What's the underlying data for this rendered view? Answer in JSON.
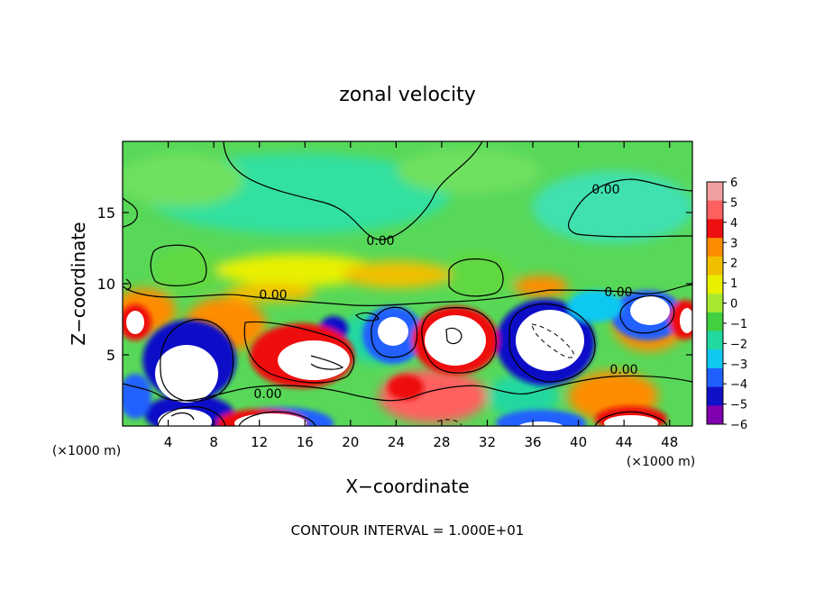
{
  "chart_data": {
    "type": "heatmap",
    "title": "zonal velocity",
    "xlabel": "X−coordinate",
    "ylabel": "Z−coordinate",
    "x_unit_left": "(×1000 m)",
    "x_unit_right": "(×1000 m)",
    "footer": "CONTOUR INTERVAL = 1.000E+01",
    "xlim": [
      0,
      50
    ],
    "ylim": [
      0,
      20
    ],
    "x_ticks": [
      4,
      8,
      12,
      16,
      20,
      24,
      28,
      32,
      36,
      40,
      44,
      48
    ],
    "y_ticks": [
      5,
      10,
      15
    ],
    "colorbar": {
      "ticks": [
        "6",
        "5",
        "4",
        "3",
        "2",
        "1",
        "0",
        "−1",
        "−2",
        "−3",
        "−4",
        "−5",
        "−6"
      ],
      "colors": [
        "#f0a0a0",
        "#ff6060",
        "#ee1010",
        "#ff8c00",
        "#f0c000",
        "#e8f000",
        "#a8e830",
        "#40d040",
        "#20d8a0",
        "#10c8f0",
        "#2060ff",
        "#1010c8",
        "#8000b0"
      ]
    },
    "contour_labels": [
      {
        "text": "0.00",
        "x": 45.4,
        "y": 16.6
      },
      {
        "text": "0.00",
        "x": 22.5,
        "y": 12.9
      },
      {
        "text": "0.00",
        "x": 13.2,
        "y": 9.2
      },
      {
        "text": "0.00",
        "x": 43.2,
        "y": 9.5
      },
      {
        "text": "0.00",
        "x": 43.6,
        "y": 3.9
      },
      {
        "text": "0.00",
        "x": 12.6,
        "y": 2.3
      }
    ]
  }
}
